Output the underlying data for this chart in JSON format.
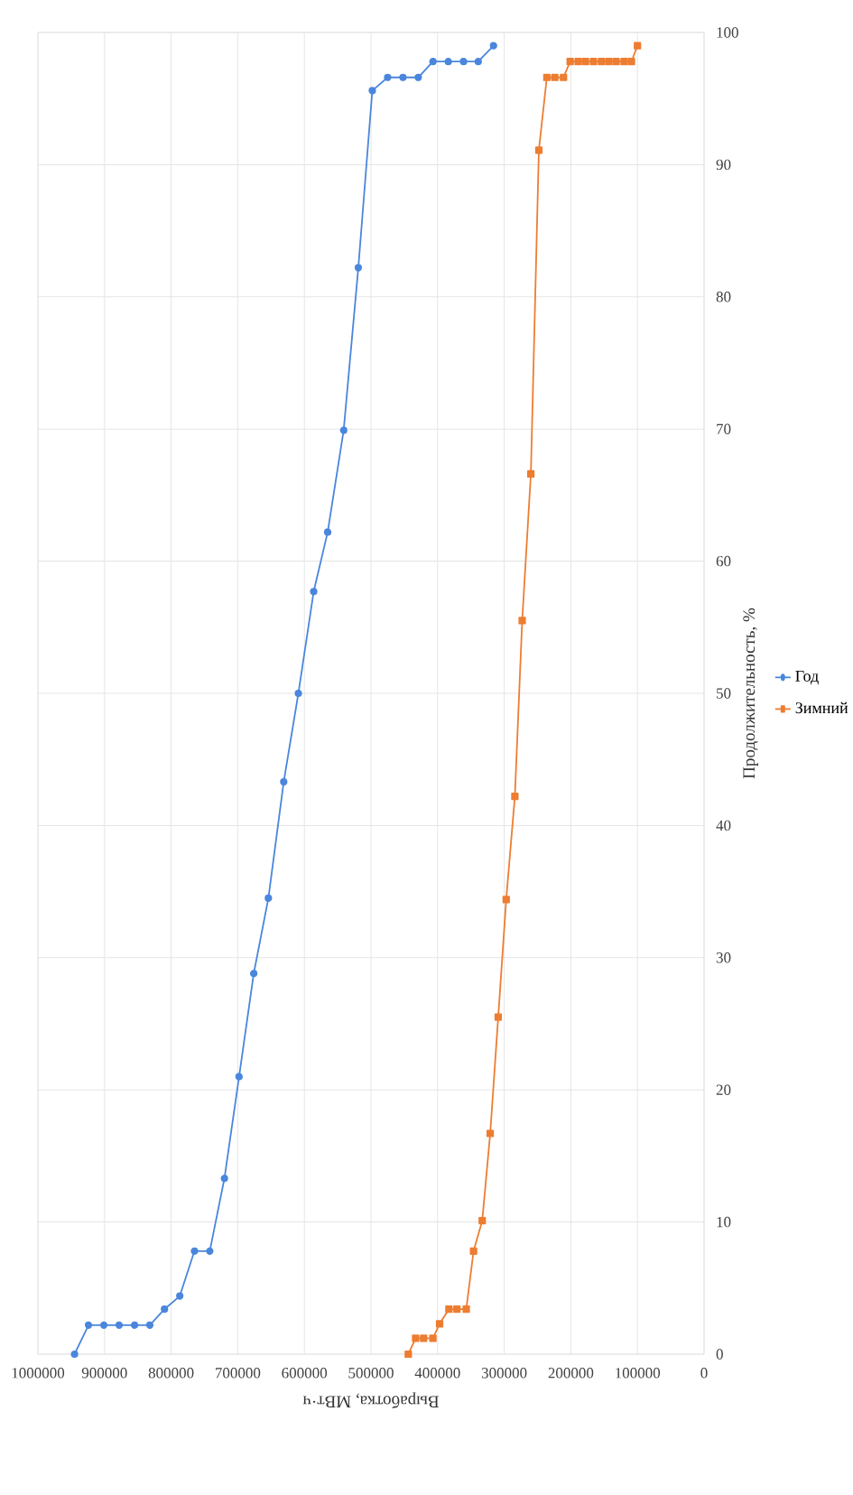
{
  "chart_data": {
    "type": "line",
    "xlabel": "Выработка, МВт·ч",
    "ylabel": "Продолжительность, %",
    "xlim": [
      1000000,
      0
    ],
    "ylim": [
      0,
      100
    ],
    "xticks": [
      0,
      100000,
      200000,
      300000,
      400000,
      500000,
      600000,
      700000,
      800000,
      900000,
      1000000
    ],
    "yticks": [
      0,
      10,
      20,
      30,
      40,
      50,
      60,
      70,
      80,
      90,
      100
    ],
    "grid": true,
    "legend": "right",
    "series": [
      {
        "name": "Год",
        "color": "#4a86dc",
        "marker": "circle",
        "x": [
          945000,
          924000,
          901000,
          878000,
          855000,
          832000,
          810000,
          787000,
          765000,
          742000,
          720000,
          698000,
          676000,
          654000,
          631000,
          609000,
          586000,
          565000,
          541000,
          519000,
          498000,
          475000,
          452000,
          429000,
          407000,
          384000,
          361000,
          339000,
          316000
        ],
        "values": [
          0,
          2.2,
          2.2,
          2.2,
          2.2,
          2.2,
          3.4,
          4.4,
          7.8,
          7.8,
          13.3,
          21.0,
          28.8,
          34.5,
          43.3,
          50,
          57.7,
          62.2,
          69.9,
          82.2,
          95.6,
          96.6,
          96.6,
          96.6,
          97.8,
          97.8,
          97.8,
          97.8,
          99
        ]
      },
      {
        "name": "Зимний",
        "color": "#ed7d31",
        "marker": "square",
        "x": [
          444000,
          433000,
          421000,
          407000,
          397000,
          383000,
          371000,
          357000,
          346000,
          333000,
          321000,
          309000,
          297000,
          284000,
          273000,
          260000,
          248000,
          236000,
          224000,
          211000,
          201000,
          189000,
          178000,
          166000,
          154000,
          143000,
          132000,
          120000,
          109000,
          100000
        ],
        "values": [
          0,
          1.2,
          1.2,
          1.2,
          2.3,
          3.4,
          3.4,
          3.4,
          7.8,
          10.1,
          16.7,
          25.5,
          34.4,
          42.2,
          55.5,
          66.6,
          91.1,
          96.6,
          96.6,
          96.6,
          97.8,
          97.8,
          97.8,
          97.8,
          97.8,
          97.8,
          97.8,
          97.8,
          97.8,
          99
        ]
      }
    ]
  }
}
